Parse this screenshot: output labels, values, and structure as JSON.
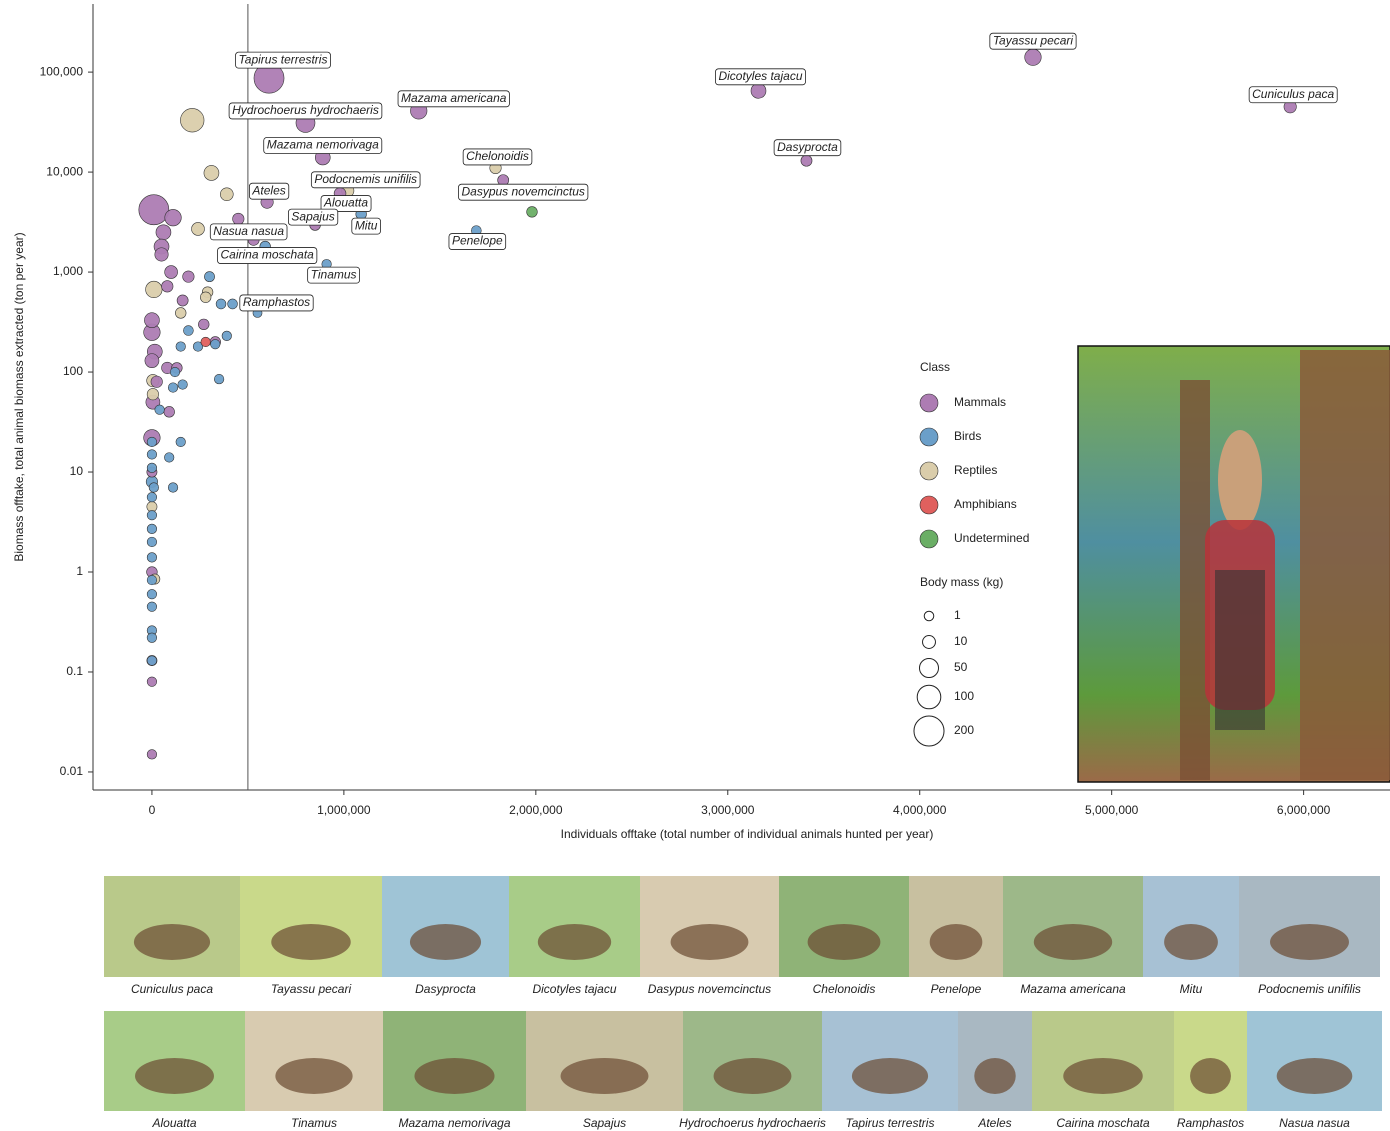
{
  "chart_data": {
    "type": "scatter",
    "x_label": "Individuals offtake (total number of individual animals hunted per year)",
    "y_label": "Biomass offtake, total animal biomass extracted (ton per year)",
    "y_scale": "log",
    "xlim": [
      -307000,
      6450000
    ],
    "ylim": [
      0.0066,
      480000
    ],
    "xticks": [
      0,
      {
        "value": 1000000,
        "label": "1,000,000"
      },
      {
        "value": 2000000,
        "label": "2,000,000"
      },
      {
        "value": 3000000,
        "label": "3,000,000"
      },
      {
        "value": 4000000,
        "label": "4,000,000"
      },
      {
        "value": 5000000,
        "label": "5,000,000"
      },
      {
        "value": 6000000,
        "label": "6,000,000"
      }
    ],
    "yticks": [
      0.01,
      0.1,
      1,
      10,
      100,
      {
        "value": 1000,
        "label": "1,000"
      },
      {
        "value": 10000,
        "label": "10,000"
      },
      {
        "value": 100000,
        "label": "100,000"
      }
    ],
    "vline": 500000,
    "legend_title": "Class",
    "size_legend": {
      "title": "Body mass (kg)",
      "values": [
        1,
        10,
        50,
        100,
        200
      ]
    },
    "series": [
      {
        "name": "Mammals",
        "color": "#ad7cb3",
        "x": [
          610000,
          800000,
          1390000,
          890000,
          600000,
          980000,
          850000,
          530000,
          1830000,
          3160000,
          3410000,
          4590000,
          5930000,
          10000,
          110000,
          60000,
          50000,
          50000,
          100000,
          190000,
          450000,
          80000,
          160000,
          0,
          0,
          15000,
          0,
          5000,
          0,
          80000,
          130000,
          25000,
          90000,
          0,
          0,
          0,
          0,
          270000,
          330000,
          0
        ],
        "values": [
          87000,
          31000,
          41000,
          14000,
          5000,
          6100,
          2950,
          2100,
          8300,
          65000,
          13000,
          141000,
          45000,
          4200,
          3500,
          2500,
          1800,
          1500,
          1000,
          900,
          3400,
          720,
          520,
          330,
          250,
          160,
          130,
          50,
          22,
          110,
          110,
          80,
          40,
          1,
          0.13,
          0.08,
          0.015,
          300,
          200,
          10
        ],
        "sizes": [
          200,
          50,
          30,
          20,
          8,
          6,
          3,
          4,
          4,
          20,
          4,
          30,
          8,
          200,
          30,
          20,
          20,
          12,
          10,
          5,
          5,
          5,
          4,
          20,
          30,
          20,
          15,
          15,
          30,
          5,
          3,
          5,
          3,
          3,
          2,
          1,
          1,
          3,
          3,
          2
        ],
        "labels": [
          "Tapirus terrestris",
          "Hydrochoerus hydrochaeris",
          "Mazama americana",
          "Mazama nemorivaga",
          "Ateles",
          "Alouatta",
          "Sapajus",
          "Nasua nasua",
          "Dasypus novemcinctus",
          "Dicotyles tajacu",
          "Dasyprocta",
          "Tayassu pecari",
          "Cuniculus paca",
          null,
          null,
          null,
          null,
          null,
          null,
          null,
          null,
          null,
          null,
          null,
          null,
          null,
          null,
          null,
          null,
          null,
          null,
          null,
          null,
          null,
          null,
          null,
          null,
          null,
          null,
          null
        ]
      },
      {
        "name": "Birds",
        "color": "#6b9fc9",
        "x": [
          1090000,
          590000,
          910000,
          550000,
          1690000,
          300000,
          420000,
          360000,
          190000,
          390000,
          330000,
          240000,
          150000,
          120000,
          160000,
          110000,
          350000,
          150000,
          90000,
          110000,
          0,
          0,
          0,
          0,
          10000,
          0,
          0,
          0,
          0,
          0,
          0,
          0,
          0,
          0,
          0,
          0,
          40000
        ],
        "values": [
          3800,
          1800,
          1200,
          390,
          2600,
          900,
          480,
          480,
          260,
          230,
          190,
          180,
          180,
          100,
          75,
          70,
          85,
          20,
          14,
          7,
          20,
          15,
          11,
          8,
          7,
          5.6,
          3.7,
          2.7,
          2,
          1.4,
          0.83,
          0.6,
          0.45,
          0.26,
          0.22,
          0.13,
          42
        ],
        "sizes": [
          3,
          3,
          1,
          0.5,
          1.5,
          2,
          1.5,
          1.5,
          1.5,
          1,
          1,
          1,
          1,
          1,
          1,
          1,
          1,
          1,
          1,
          1,
          1,
          1,
          1,
          5,
          1,
          1,
          1,
          1,
          1,
          1,
          1,
          1,
          1,
          1,
          1,
          1,
          1
        ],
        "labels": [
          "Mitu",
          "Cairina moschata",
          "Tinamus",
          "Ramphastos",
          "Penelope",
          null,
          null,
          null,
          null,
          null,
          null,
          null,
          null,
          null,
          null,
          null,
          null,
          null,
          null,
          null,
          null,
          null,
          null,
          null,
          null,
          null,
          null,
          null,
          null,
          null,
          null,
          null,
          null,
          null,
          null,
          null,
          null
        ]
      },
      {
        "name": "Reptiles",
        "color": "#dacdab",
        "x": [
          1020000,
          1790000,
          210000,
          310000,
          390000,
          240000,
          10000,
          290000,
          280000,
          150000,
          5000,
          5000,
          0,
          15000
        ],
        "values": [
          6500,
          11000,
          33000,
          9800,
          6000,
          2700,
          670,
          630,
          560,
          390,
          82,
          60,
          4.5,
          0.85
        ],
        "sizes": [
          8,
          5,
          100,
          20,
          10,
          10,
          30,
          3,
          3,
          3,
          8,
          5,
          2,
          2
        ],
        "labels": [
          "Podocnemis unifilis",
          "Chelonoidis",
          null,
          null,
          null,
          null,
          null,
          null,
          null,
          null,
          null,
          null,
          null,
          null
        ]
      },
      {
        "name": "Amphibians",
        "color": "#e0605e",
        "x": [
          280000
        ],
        "values": [
          200
        ],
        "sizes": [
          1
        ],
        "labels": [
          null
        ]
      },
      {
        "name": "Undetermined",
        "color": "#6aae65",
        "x": [
          1980000
        ],
        "values": [
          4000
        ],
        "sizes": [
          3
        ],
        "labels": [
          null
        ]
      }
    ]
  },
  "images": {
    "row1": [
      "Cuniculus paca",
      "Tayassu pecari",
      "Dasyprocta",
      "Dicotyles tajacu",
      "Dasypus novemcinctus",
      "Chelonoidis",
      "Penelope",
      "Mazama americana",
      "Mitu",
      "Podocnemis unifilis"
    ],
    "row2": [
      "Alouatta",
      "Tinamus",
      "Mazama nemorivaga",
      "Sapajus",
      "Hydrochoerus hydrochaeris",
      "Tapirus terrestris",
      "Ateles",
      "Cairina moschata",
      "Ramphastos",
      "Nasua nasua"
    ]
  }
}
